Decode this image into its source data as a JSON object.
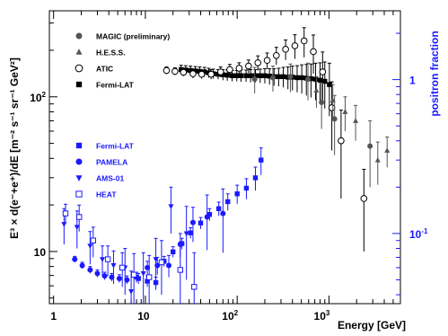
{
  "chart_data": {
    "type": "scatter",
    "title": "",
    "xlabel": "Energy [GeV]",
    "ylabel_left": "E³ × d(e⁻+e⁺)/dE [m⁻² s⁻¹ sr⁻¹ GeV²]",
    "ylabel_right": "positron fraction",
    "x_scale": "log",
    "y_scale": "log",
    "xlim": [
      0.9,
      6000
    ],
    "ylim_left": [
      4.6,
      360
    ],
    "ylim_right": [
      0.035,
      2.8
    ],
    "x_ticks": [
      {
        "text": "1"
      },
      {
        "text": "10"
      },
      {
        "text": "10",
        "sup": "2"
      },
      {
        "text": "10",
        "sup": "3"
      }
    ],
    "y_ticks_left": [
      {
        "text": "10"
      },
      {
        "text": "10",
        "sup": "2"
      }
    ],
    "y_ticks_right": [
      {
        "text": "1"
      },
      {
        "text": "10",
        "sup": "-1"
      }
    ],
    "legend_electron": [
      {
        "name": "MAGIC (preliminary)",
        "marker": "circle-filled",
        "color": "#555555"
      },
      {
        "name": "H.E.S.S.",
        "marker": "triangle",
        "color": "#555555"
      },
      {
        "name": "ATIC",
        "marker": "circle-open",
        "color": "#000000"
      },
      {
        "name": "Fermi-LAT",
        "marker": "square",
        "color": "#000000"
      }
    ],
    "legend_positron": [
      {
        "name": "Fermi-LAT",
        "marker": "square",
        "color": "#1a1aff"
      },
      {
        "name": "PAMELA",
        "marker": "circle-filled",
        "color": "#1a1aff"
      },
      {
        "name": "AMS-01",
        "marker": "triangle-down",
        "color": "#1a1aff"
      },
      {
        "name": "HEAT",
        "marker": "square-open",
        "color": "#1a1aff"
      }
    ],
    "series": [
      {
        "name": "Fermi-LAT",
        "axis": "left",
        "marker": "square",
        "color": "#000000",
        "points": [
          [
            24.5,
            150,
            10
          ],
          [
            27.5,
            149,
            10
          ],
          [
            31,
            148,
            10
          ],
          [
            35,
            147,
            10
          ],
          [
            39,
            146,
            10
          ],
          [
            44,
            145,
            10
          ],
          [
            49,
            143,
            10
          ],
          [
            55,
            141,
            10
          ],
          [
            62,
            140,
            10
          ],
          [
            70,
            139,
            11
          ],
          [
            78,
            138,
            11
          ],
          [
            88,
            137,
            11
          ],
          [
            99,
            137,
            11
          ],
          [
            110,
            137,
            12
          ],
          [
            125,
            137,
            12
          ],
          [
            140,
            137,
            13
          ],
          [
            158,
            137,
            13
          ],
          [
            178,
            137,
            14
          ],
          [
            200,
            137,
            15
          ],
          [
            225,
            136,
            16
          ],
          [
            252,
            135,
            17
          ],
          [
            283,
            135,
            18
          ],
          [
            318,
            135,
            20
          ],
          [
            357,
            134,
            22
          ],
          [
            400,
            134,
            24
          ],
          [
            450,
            133,
            26
          ],
          [
            505,
            133,
            28
          ],
          [
            567,
            132,
            30
          ],
          [
            637,
            131,
            32
          ],
          [
            715,
            130,
            35
          ],
          [
            800,
            128,
            38
          ],
          [
            900,
            126,
            42
          ],
          [
            1010,
            120,
            45
          ]
        ]
      },
      {
        "name": "ATIC",
        "axis": "left",
        "marker": "circle-open",
        "color": "#000000",
        "points": [
          [
            17,
            148,
            8
          ],
          [
            21,
            146,
            8
          ],
          [
            26,
            144,
            8
          ],
          [
            33,
            141,
            9
          ],
          [
            41,
            140,
            9
          ],
          [
            52,
            140,
            10
          ],
          [
            66,
            145,
            11
          ],
          [
            83,
            150,
            12
          ],
          [
            105,
            153,
            13
          ],
          [
            133,
            158,
            15
          ],
          [
            168,
            166,
            18
          ],
          [
            212,
            172,
            20
          ],
          [
            267,
            185,
            24
          ],
          [
            337,
            203,
            30
          ],
          [
            425,
            214,
            38
          ],
          [
            536,
            230,
            50
          ],
          [
            676,
            196,
            55
          ],
          [
            852,
            145,
            50
          ],
          [
            1074,
            85,
            40
          ],
          [
            1354,
            52,
            30
          ],
          [
            2400,
            22,
            12
          ]
        ]
      },
      {
        "name": "MAGIC (preliminary)",
        "axis": "left",
        "marker": "circle-filled",
        "color": "#555555",
        "points": [
          [
            155,
            130,
            25
          ],
          [
            245,
            133,
            25
          ],
          [
            380,
            135,
            28
          ],
          [
            590,
            130,
            35
          ],
          [
            830,
            92,
            30
          ],
          [
            1150,
            72,
            30
          ],
          [
            2800,
            48,
            22
          ]
        ]
      },
      {
        "name": "H.E.S.S.",
        "axis": "left",
        "marker": "triangle",
        "color": "#555555",
        "points": [
          [
            730,
            110,
            25
          ],
          [
            1100,
            95,
            25
          ],
          [
            1500,
            80,
            20
          ],
          [
            1950,
            70,
            18
          ],
          [
            3400,
            39,
            12
          ],
          [
            4300,
            45,
            10
          ]
        ]
      },
      {
        "name": "Fermi-LAT",
        "axis": "right",
        "marker": "square",
        "color": "#1a1aff",
        "points": [
          [
            8.4,
            0.051,
            0.004
          ],
          [
            10.5,
            0.049,
            0.004
          ],
          [
            13,
            0.048,
            0.004
          ],
          [
            16,
            0.066,
            0.005
          ],
          [
            20,
            0.076,
            0.006
          ],
          [
            25,
            0.086,
            0.007
          ],
          [
            31,
            0.101,
            0.008
          ],
          [
            40,
            0.117,
            0.01
          ],
          [
            50,
            0.133,
            0.012
          ],
          [
            63,
            0.145,
            0.015
          ],
          [
            79,
            0.161,
            0.02
          ],
          [
            100,
            0.181,
            0.025
          ],
          [
            126,
            0.197,
            0.03
          ],
          [
            158,
            0.23,
            0.04
          ],
          [
            182,
            0.3,
            0.06
          ]
        ]
      },
      {
        "name": "PAMELA",
        "axis": "right",
        "marker": "circle-filled",
        "color": "#1a1aff",
        "points": [
          [
            1.7,
            0.068,
            0.003
          ],
          [
            2.05,
            0.062,
            0.003
          ],
          [
            2.5,
            0.058,
            0.003
          ],
          [
            3.0,
            0.055,
            0.003
          ],
          [
            3.6,
            0.053,
            0.003
          ],
          [
            4.3,
            0.052,
            0.003
          ],
          [
            5.2,
            0.051,
            0.003
          ],
          [
            6.3,
            0.05,
            0.003
          ],
          [
            8.0,
            0.052,
            0.004
          ],
          [
            10.5,
            0.06,
            0.006
          ],
          [
            13.5,
            0.062,
            0.008
          ],
          [
            18,
            0.062,
            0.01
          ],
          [
            24,
            0.085,
            0.015
          ],
          [
            33,
            0.118,
            0.03
          ],
          [
            47,
            0.128,
            0.05
          ],
          [
            70,
            0.135,
            0.06
          ]
        ]
      },
      {
        "name": "AMS-01",
        "axis": "right",
        "marker": "triangle-down",
        "color": "#1a1aff",
        "points": [
          [
            1.3,
            0.115,
            0.03
          ],
          [
            1.8,
            0.11,
            0.03
          ],
          [
            2.5,
            0.083,
            0.02
          ],
          [
            3.4,
            0.068,
            0.015
          ],
          [
            4.5,
            0.062,
            0.015
          ],
          [
            6,
            0.06,
            0.02
          ],
          [
            7,
            0.042,
            0.015
          ],
          [
            9.5,
            0.055,
            0.02
          ],
          [
            13,
            0.068,
            0.025
          ],
          [
            19,
            0.15,
            0.05
          ],
          [
            28,
            0.1,
            0.05
          ]
        ]
      },
      {
        "name": "HEAT",
        "axis": "right",
        "marker": "square-open",
        "color": "#1a1aff",
        "points": [
          [
            1.35,
            0.135,
            0.02
          ],
          [
            1.9,
            0.128,
            0.025
          ],
          [
            2.7,
            0.09,
            0.02
          ],
          [
            3.9,
            0.068,
            0.015
          ],
          [
            5.6,
            0.06,
            0.015
          ],
          [
            7.5,
            0.054,
            0.02
          ],
          [
            11,
            0.052,
            0.02
          ],
          [
            15,
            0.065,
            0.025
          ],
          [
            24,
            0.058,
            0.03
          ],
          [
            34,
            0.045,
            0.03
          ]
        ]
      }
    ]
  }
}
